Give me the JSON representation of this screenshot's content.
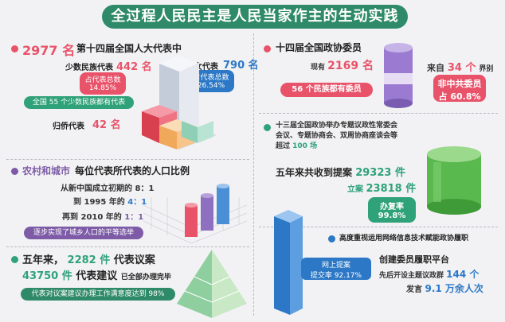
{
  "title": "全过程人民民主是人民当家作主的生动实践",
  "section1": {
    "deputies_count": "2977 名",
    "deputies_label": "第十四届全国人大代表中",
    "minority_label": "少数民族代表",
    "minority_value": "442 名",
    "minority_share_label": "占代表总数",
    "minority_share_value": "14.85%",
    "minority_note": "全国 55 个少数民族都有代表",
    "women_label": "妇女代表",
    "women_value": "790 名",
    "women_share_label": "占代表总数",
    "women_share_value": "26.54%",
    "returnee_label": "归侨代表",
    "returnee_value": "42 名"
  },
  "section2": {
    "heading_part1": "农村和城市",
    "heading_part2": "每位代表所代表的人口比例",
    "line1": "从新中国成立初期的 8：1",
    "line2_prefix": "到 1995 年的",
    "line2_value": "4：1",
    "line3_prefix": "再到 2010 年的",
    "line3_value": "1：1",
    "note": "逐步实现了城乡人口的平等选举"
  },
  "section3": {
    "heading_prefix": "五年来，",
    "motions_value": "2282 件",
    "motions_label": "代表议案",
    "suggestions_value": "43750 件",
    "suggestions_label": "代表建议",
    "done_label": "已全部办理完毕",
    "satisfaction_note": "代表对议案建议办理工作满意度达到 98%"
  },
  "section4": {
    "heading": "十四届全国政协委员",
    "current_label": "现有",
    "current_value": "2169 名",
    "from_label": "来自",
    "from_value": "34 个",
    "from_suffix": "界别",
    "ethnic_note": "56 个民族都有委员",
    "nonparty_label": "非中共委员",
    "nonparty_value": "占 60.8%"
  },
  "section5": {
    "heading_line1": "十三届全国政协举办专题议政性常委会",
    "heading_line2": "会议、专题协商会、双周协商座谈会等",
    "heading_line3_prefix": "超过",
    "heading_line3_value": "100 场",
    "proposals_label": "五年来共收到提案",
    "proposals_value": "29323 件",
    "filed_label": "立案",
    "filed_value": "23818 件",
    "completion_label": "办复率",
    "completion_value": "99.8%"
  },
  "section6": {
    "heading": "高度重视运用网络信息技术赋能政协履职",
    "online_label": "网上提案",
    "online_rate": "提交率 92.17%",
    "platform_label": "创建委员履职平台",
    "topics_prefix": "先后开设主题议政群",
    "topics_value": "144 个",
    "speeches_prefix": "发言",
    "speeches_value": "9.1 万余人次"
  },
  "colors": {
    "green": "#2f8a6a",
    "red": "#e9536a",
    "blue": "#2c78c6",
    "purple": "#7d5ba6"
  }
}
